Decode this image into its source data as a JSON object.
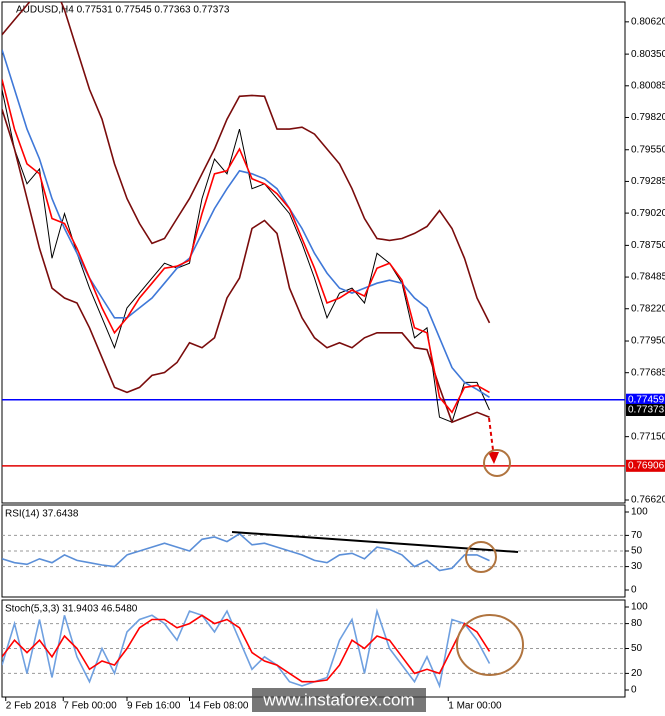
{
  "chart_data": [
    {
      "type": "line",
      "title": "AUDUSD,H4  0.77531 0.77545 0.77363 0.77373",
      "grid": false,
      "x": [
        0,
        1,
        2,
        3,
        4,
        5,
        6,
        7,
        8,
        9,
        10,
        11,
        12,
        13,
        14,
        15,
        16,
        17,
        18,
        19,
        20,
        21,
        22,
        23,
        24,
        25,
        26,
        27,
        28,
        29,
        30,
        31,
        32,
        33,
        34,
        35,
        36,
        37,
        38,
        39
      ],
      "xlim": [
        0,
        50
      ],
      "ylim": [
        0.76595,
        0.80786
      ],
      "yticks": [
        {
          "value": 0.8062,
          "label": "0.80620"
        },
        {
          "value": 0.8035,
          "label": "0.80350"
        },
        0.80085,
        {
          "value": 0.7982,
          "label": "0.79820"
        },
        {
          "value": 0.7955,
          "label": "0.79550"
        },
        0.79285,
        {
          "value": 0.7902,
          "label": "0.79020"
        },
        {
          "value": 0.7875,
          "label": "0.78750"
        },
        0.78485,
        {
          "value": 0.7822,
          "label": "0.78220"
        },
        {
          "value": 0.7795,
          "label": "0.77950"
        },
        0.77685,
        {
          "value": 0.7715,
          "label": "0.77150"
        },
        {
          "value": 0.7662,
          "label": "0.76620"
        }
      ],
      "hlines": [
        {
          "value": 0.77459,
          "color": "#0000ff"
        },
        {
          "value": 0.76906,
          "color": "#e00000"
        }
      ],
      "series": [
        {
          "color": "#000000",
          "values": [
            0.80055,
            0.79556,
            0.79265,
            0.7939,
            0.78642,
            0.79016,
            0.78684,
            0.78393,
            0.78144,
            0.77894,
            0.78227,
            0.78351,
            0.78476,
            0.78601,
            0.78559,
            0.78601,
            0.79141,
            0.79473,
            0.79349,
            0.79723,
            0.79224,
            0.79265,
            0.79141,
            0.79016,
            0.78767,
            0.78476,
            0.78144,
            0.78351,
            0.78393,
            0.78268,
            0.78684,
            0.78601,
            0.78434,
            0.77977,
            0.78061,
            0.77313,
            0.77271,
            0.77604,
            0.77604,
            0.77373
          ]
        },
        {
          "color": "#7a0c0c",
          "values": [
            0.80512,
            0.80637,
            0.80761,
            0.80886,
            0.80969,
            0.8072,
            0.80387,
            0.80055,
            0.79806,
            0.79432,
            0.79141,
            0.78933,
            0.78767,
            0.78808,
            0.78975,
            0.79141,
            0.79349,
            0.79556,
            0.79806,
            0.79997,
            0.80005,
            0.79997,
            0.79723,
            0.79723,
            0.79739,
            0.79681,
            0.79556,
            0.79432,
            0.79224,
            0.78975,
            0.78808,
            0.78792,
            0.78808,
            0.7885,
            0.78908,
            0.79041,
            0.78891,
            0.78642,
            0.7831,
            0.78102
          ]
        },
        {
          "color": "#7a0c0c",
          "values": [
            0.79889,
            0.79556,
            0.79141,
            0.78725,
            0.78393,
            0.7831,
            0.78268,
            0.78061,
            0.77811,
            0.77562,
            0.7752,
            0.77562,
            0.77662,
            0.77687,
            0.7777,
            0.77936,
            0.77894,
            0.77977,
            0.7831,
            0.78476,
            0.78891,
            0.78958,
            0.7885,
            0.78393,
            0.78144,
            0.77977,
            0.77894,
            0.77936,
            0.77894,
            0.77977,
            0.78019,
            0.78019,
            0.78019,
            0.77894,
            0.77878,
            0.77562,
            0.77271,
            0.77313,
            0.77354,
            0.77313
          ]
        },
        {
          "color": "#3f78d8",
          "values": [
            0.80387,
            0.80055,
            0.79723,
            0.79473,
            0.79141,
            0.78891,
            0.78684,
            0.78476,
            0.7831,
            0.78144,
            0.78144,
            0.78227,
            0.7831,
            0.78434,
            0.78559,
            0.78642,
            0.7885,
            0.79058,
            0.79224,
            0.79374,
            0.79349,
            0.79307,
            0.79224,
            0.79058,
            0.78891,
            0.78684,
            0.78518,
            0.78393,
            0.78351,
            0.78393,
            0.78434,
            0.78459,
            0.78434,
            0.7831,
            0.78227,
            0.77977,
            0.77728,
            0.77604,
            0.77545,
            0.77479
          ]
        },
        {
          "color": "#ff0000",
          "values": [
            0.80138,
            0.79723,
            0.79432,
            0.79349,
            0.78975,
            0.78933,
            0.78725,
            0.78476,
            0.78227,
            0.78019,
            0.78144,
            0.7831,
            0.78434,
            0.78559,
            0.78576,
            0.78626,
            0.79016,
            0.79349,
            0.79374,
            0.79556,
            0.79307,
            0.79265,
            0.79182,
            0.79058,
            0.78808,
            0.78559,
            0.78268,
            0.7831,
            0.78376,
            0.78326,
            0.78559,
            0.78601,
            0.78459,
            0.78061,
            0.78019,
            0.77479,
            0.77354,
            0.77562,
            0.77579,
            0.7752
          ]
        }
      ]
    },
    {
      "type": "line",
      "title": "RSI(14) 37.6438",
      "grid": true,
      "x": [
        0,
        1,
        2,
        3,
        4,
        5,
        6,
        7,
        8,
        9,
        10,
        11,
        12,
        13,
        14,
        15,
        16,
        17,
        18,
        19,
        20,
        21,
        22,
        23,
        24,
        25,
        26,
        27,
        28,
        29,
        30,
        31,
        32,
        33,
        34,
        35,
        36,
        37,
        38,
        39
      ],
      "xlim": [
        0,
        50
      ],
      "ylim": [
        0,
        100
      ],
      "yticks": [
        100,
        70,
        50,
        30,
        0
      ],
      "series": [
        {
          "color": "#5b8fd8",
          "values": [
            40,
            35,
            33,
            40,
            35,
            45,
            38,
            35,
            32,
            30,
            45,
            50,
            55,
            60,
            55,
            50,
            65,
            68,
            62,
            72,
            58,
            60,
            55,
            50,
            45,
            38,
            35,
            45,
            47,
            40,
            55,
            52,
            45,
            30,
            38,
            25,
            28,
            45,
            45,
            37.6438
          ]
        }
      ]
    },
    {
      "type": "line",
      "title": "Stoch(5,3,3) 31.9403 46.5480",
      "grid": true,
      "x": [
        0,
        1,
        2,
        3,
        4,
        5,
        6,
        7,
        8,
        9,
        10,
        11,
        12,
        13,
        14,
        15,
        16,
        17,
        18,
        19,
        20,
        21,
        22,
        23,
        24,
        25,
        26,
        27,
        28,
        29,
        30,
        31,
        32,
        33,
        34,
        35,
        36,
        37,
        38,
        39
      ],
      "xlim": [
        0,
        50
      ],
      "ylim": [
        0,
        100
      ],
      "yticks": [
        100,
        80,
        50,
        20,
        0
      ],
      "xticks": [
        {
          "value": 0.3,
          "label": "2 Feb 2018"
        },
        {
          "value": 4.9,
          "label": "7 Feb 00:00"
        },
        {
          "value": 10,
          "label": "9 Feb 16:00"
        },
        {
          "value": 15,
          "label": "14 Feb 08:00"
        },
        {
          "value": 35.7,
          "label": "1 Mar 00:00"
        }
      ],
      "series": [
        {
          "color": "#6fa0e0",
          "values": [
            30,
            80,
            20,
            85,
            15,
            90,
            40,
            10,
            50,
            20,
            70,
            85,
            90,
            80,
            60,
            95,
            90,
            70,
            95,
            60,
            25,
            40,
            30,
            10,
            5,
            10,
            15,
            60,
            85,
            20,
            95,
            50,
            30,
            10,
            40,
            5,
            85,
            80,
            60,
            31.9403
          ]
        },
        {
          "color": "#ff0000",
          "values": [
            40,
            60,
            45,
            60,
            40,
            65,
            50,
            25,
            35,
            30,
            50,
            75,
            85,
            85,
            75,
            80,
            90,
            80,
            85,
            75,
            45,
            35,
            30,
            20,
            10,
            10,
            12,
            30,
            60,
            50,
            65,
            60,
            40,
            20,
            25,
            20,
            50,
            80,
            70,
            46.548
          ]
        }
      ]
    }
  ],
  "watermark": "www.instaforex.com"
}
